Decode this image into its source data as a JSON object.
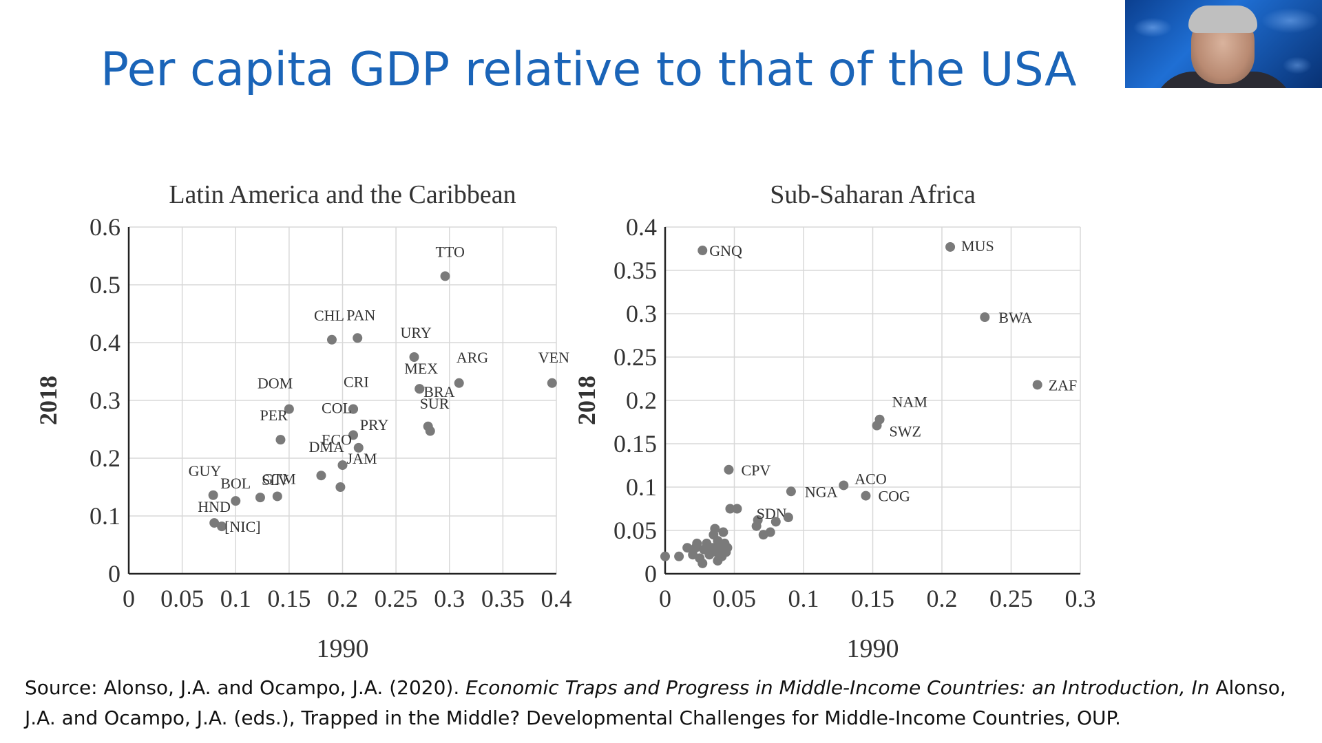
{
  "slide": {
    "title": "Per capita GDP relative to that of the USA"
  },
  "source": {
    "prefix": "Source: Alonso, J.A. and Ocampo, J.A. (2020). ",
    "italic": "Economic Traps and Progress in Middle-Income Countries: an Introduction, In",
    "rest": " Alonso, J.A. and Ocampo, J.A. (eds.), Trapped in the Middle? Developmental Challenges for Middle-Income Countries, OUP."
  },
  "colors": {
    "title": "#1a64b8",
    "marker": "#7a7a7a",
    "grid": "#d8d8d8",
    "axis": "#222222"
  },
  "chart_data": [
    {
      "type": "scatter",
      "title": "Latin America and the Caribbean",
      "xlabel": "1990",
      "ylabel": "2018",
      "xlim": [
        0,
        0.4
      ],
      "ylim": [
        0,
        0.6
      ],
      "xticks": [
        "0",
        "0.05",
        "0.1",
        "0.15",
        "0.2",
        "0.25",
        "0.3",
        "0.35",
        "0.4"
      ],
      "yticks": [
        "0",
        "0.1",
        "0.2",
        "0.3",
        "0.4",
        "0.5",
        "0.6"
      ],
      "grid": true,
      "points": [
        {
          "label": "TTO",
          "x": 0.296,
          "y": 0.515
        },
        {
          "label": "CHL",
          "x": 0.19,
          "y": 0.405
        },
        {
          "label": "PAN",
          "x": 0.214,
          "y": 0.408
        },
        {
          "label": "URY",
          "x": 0.267,
          "y": 0.375
        },
        {
          "label": "MEX",
          "x": 0.272,
          "y": 0.32
        },
        {
          "label": "ARG",
          "x": 0.309,
          "y": 0.33
        },
        {
          "label": "VEN",
          "x": 0.396,
          "y": 0.33
        },
        {
          "label": "BRA",
          "x": 0.272,
          "y": 0.32
        },
        {
          "label": "SUR",
          "x": 0.28,
          "y": 0.255
        },
        {
          "label": "",
          "x": 0.282,
          "y": 0.247
        },
        {
          "label": "DOM",
          "x": 0.15,
          "y": 0.285
        },
        {
          "label": "PER",
          "x": 0.142,
          "y": 0.232
        },
        {
          "label": "CRI",
          "x": 0.21,
          "y": 0.285
        },
        {
          "label": "COL",
          "x": 0.21,
          "y": 0.285
        },
        {
          "label": "ECO",
          "x": 0.21,
          "y": 0.24
        },
        {
          "label": "PRY",
          "x": 0.215,
          "y": 0.218
        },
        {
          "label": "DMA",
          "x": 0.18,
          "y": 0.17
        },
        {
          "label": "JAM",
          "x": 0.2,
          "y": 0.188
        },
        {
          "label": "",
          "x": 0.198,
          "y": 0.15
        },
        {
          "label": "GUY",
          "x": 0.079,
          "y": 0.136
        },
        {
          "label": "BOL",
          "x": 0.1,
          "y": 0.126
        },
        {
          "label": "SLV",
          "x": 0.123,
          "y": 0.132
        },
        {
          "label": "GTM",
          "x": 0.139,
          "y": 0.134
        },
        {
          "label": "HND",
          "x": 0.08,
          "y": 0.088
        },
        {
          "label": "[NIC]",
          "x": 0.087,
          "y": 0.082
        }
      ]
    },
    {
      "type": "scatter",
      "title": "Sub-Saharan Africa",
      "xlabel": "1990",
      "ylabel": "2018",
      "xlim": [
        0,
        0.3
      ],
      "ylim": [
        0,
        0.4
      ],
      "xticks": [
        "0",
        "0.05",
        "0.1",
        "0.15",
        "0.2",
        "0.25",
        "0.3"
      ],
      "yticks": [
        "0",
        "0.05",
        "0.1",
        "0.15",
        "0.2",
        "0.25",
        "0.3",
        "0.35",
        "0.4"
      ],
      "grid": true,
      "points": [
        {
          "label": "GNQ",
          "x": 0.027,
          "y": 0.373
        },
        {
          "label": "MUS",
          "x": 0.206,
          "y": 0.377
        },
        {
          "label": "BWA",
          "x": 0.231,
          "y": 0.296
        },
        {
          "label": "ZAF",
          "x": 0.269,
          "y": 0.218
        },
        {
          "label": "NAM",
          "x": 0.155,
          "y": 0.178
        },
        {
          "label": "SWZ",
          "x": 0.153,
          "y": 0.171
        },
        {
          "label": "CPV",
          "x": 0.046,
          "y": 0.12
        },
        {
          "label": "NGA",
          "x": 0.091,
          "y": 0.095
        },
        {
          "label": "ACO",
          "x": 0.129,
          "y": 0.102
        },
        {
          "label": "COG",
          "x": 0.145,
          "y": 0.09
        },
        {
          "label": "SDN",
          "x": 0.067,
          "y": 0.062
        },
        {
          "label": "",
          "x": 0.047,
          "y": 0.075
        },
        {
          "label": "",
          "x": 0.052,
          "y": 0.075
        },
        {
          "label": "",
          "x": 0.066,
          "y": 0.055
        },
        {
          "label": "",
          "x": 0.071,
          "y": 0.045
        },
        {
          "label": "",
          "x": 0.076,
          "y": 0.048
        },
        {
          "label": "",
          "x": 0.08,
          "y": 0.06
        },
        {
          "label": "",
          "x": 0.089,
          "y": 0.065
        },
        {
          "label": "",
          "x": 0.0,
          "y": 0.02
        },
        {
          "label": "",
          "x": 0.01,
          "y": 0.02
        },
        {
          "label": "",
          "x": 0.016,
          "y": 0.03
        },
        {
          "label": "",
          "x": 0.02,
          "y": 0.022
        },
        {
          "label": "",
          "x": 0.022,
          "y": 0.03
        },
        {
          "label": "",
          "x": 0.023,
          "y": 0.035
        },
        {
          "label": "",
          "x": 0.025,
          "y": 0.018
        },
        {
          "label": "",
          "x": 0.027,
          "y": 0.012
        },
        {
          "label": "",
          "x": 0.028,
          "y": 0.028
        },
        {
          "label": "",
          "x": 0.03,
          "y": 0.035
        },
        {
          "label": "",
          "x": 0.032,
          "y": 0.022
        },
        {
          "label": "",
          "x": 0.034,
          "y": 0.03
        },
        {
          "label": "",
          "x": 0.035,
          "y": 0.045
        },
        {
          "label": "",
          "x": 0.036,
          "y": 0.052
        },
        {
          "label": "",
          "x": 0.037,
          "y": 0.025
        },
        {
          "label": "",
          "x": 0.038,
          "y": 0.038
        },
        {
          "label": "",
          "x": 0.04,
          "y": 0.03
        },
        {
          "label": "",
          "x": 0.041,
          "y": 0.02
        },
        {
          "label": "",
          "x": 0.042,
          "y": 0.048
        },
        {
          "label": "",
          "x": 0.043,
          "y": 0.035
        },
        {
          "label": "",
          "x": 0.044,
          "y": 0.025
        },
        {
          "label": "",
          "x": 0.045,
          "y": 0.03
        },
        {
          "label": "",
          "x": 0.038,
          "y": 0.015
        }
      ]
    }
  ]
}
